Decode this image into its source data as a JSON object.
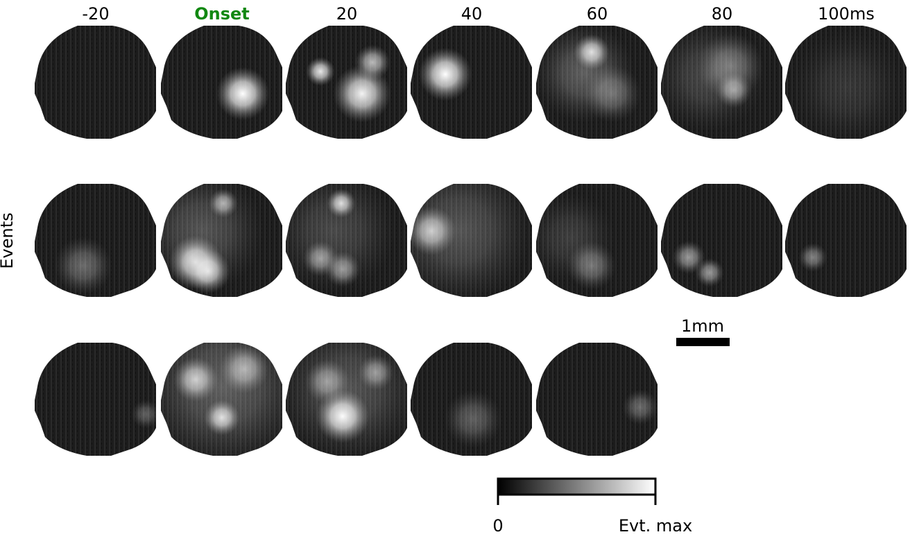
{
  "column_labels": [
    "-20",
    "Onset",
    "20",
    "40",
    "60",
    "80",
    "100ms"
  ],
  "row_label": "Events",
  "scale_bar": {
    "label": "1mm"
  },
  "colorbar": {
    "min_label": "0",
    "max_label": "Evt. max"
  }
}
